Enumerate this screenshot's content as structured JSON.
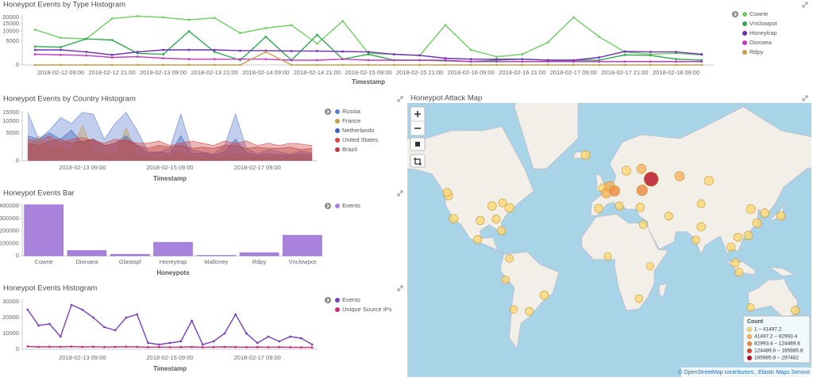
{
  "chart_data": [
    {
      "type": "line",
      "title": "Honeypot Events by Type Histogram",
      "xlabel": "Timestamp",
      "yscale": "sqrt",
      "grid": false,
      "categories": [
        null,
        "2018-02-12 09:00",
        null,
        "2018-02-12 21:00",
        null,
        "2018-02-13 09:00",
        null,
        "2018-02-13 21:00",
        null,
        "2018-02-14 09:00",
        null,
        "2018-02-14 21:00",
        null,
        "2018-02-15 09:00",
        null,
        "2018-02-15 21:00",
        null,
        "2018-02-16 09:00",
        null,
        "2018-02-16 21:00",
        null,
        "2018-02-17 09:00",
        null,
        "2018-02-17 21:00",
        null,
        "2018-02-18 09:00",
        null
      ],
      "ylim": [
        0,
        22000
      ],
      "yticks": [
        0,
        5000,
        10000,
        15000,
        20000
      ],
      "series": [
        {
          "name": "Cowrie",
          "color": "#6fcd63",
          "values": [
            11000,
            6500,
            6000,
            19000,
            21000,
            20000,
            18000,
            19500,
            9000,
            12000,
            14000,
            4000,
            17000,
            1200,
            1000,
            800,
            14000,
            2000,
            600,
            1000,
            4500,
            20000,
            7000,
            1500,
            1000,
            1200,
            900
          ]
        },
        {
          "name": "Vnclowpot",
          "color": "#2fa84f",
          "values": [
            3000,
            2800,
            6000,
            5500,
            1200,
            1000,
            10000,
            1500,
            200,
            7000,
            200,
            8000,
            300,
            1000,
            200,
            200,
            150,
            100,
            200,
            300,
            200,
            200,
            200,
            900,
            800,
            300,
            200
          ]
        },
        {
          "name": "Honeytrap",
          "color": "#6f2eb3",
          "values": [
            2000,
            2000,
            1500,
            900,
            1500,
            2000,
            2000,
            2000,
            1800,
            1800,
            1700,
            1700,
            1600,
            1500,
            1000,
            800,
            400,
            300,
            300,
            300,
            200,
            200,
            500,
            1600,
            1500,
            1500,
            1000
          ]
        },
        {
          "name": "Dionaea",
          "color": "#c13bc2",
          "values": [
            1000,
            900,
            800,
            500,
            600,
            400,
            300,
            300,
            300,
            300,
            200,
            200,
            300,
            200,
            200,
            200,
            200,
            100,
            100,
            100,
            100,
            100,
            100,
            100,
            100,
            100,
            100
          ]
        },
        {
          "name": "Rdpy",
          "color": "#c8a04c",
          "values": [
            0,
            0,
            0,
            0,
            0,
            0,
            0,
            0,
            0,
            1500,
            0,
            0,
            0,
            0,
            0,
            0,
            0,
            0,
            0,
            0,
            0,
            0,
            0,
            0,
            0,
            0,
            0
          ]
        }
      ]
    },
    {
      "type": "area",
      "title": "Honeypot Events by Country Histogram",
      "xlabel": "Timestamp",
      "yscale": "sqrt",
      "grid": false,
      "categories": [
        null,
        null,
        null,
        null,
        null,
        "2018-02-13 09:00",
        null,
        null,
        null,
        null,
        null,
        null,
        null,
        "2018-02-15 09:00",
        null,
        null,
        null,
        null,
        null,
        null,
        null,
        "2018-02-17 09:00",
        null,
        null,
        null,
        null,
        null
      ],
      "ylim": [
        0,
        16000
      ],
      "yticks": [
        0,
        5000,
        10000,
        15000
      ],
      "series": [
        {
          "name": "Russia",
          "color": "#5b7fd0",
          "values": [
            15000,
            3000,
            6000,
            12000,
            9000,
            15000,
            14000,
            3000,
            9000,
            15000,
            6000,
            500,
            500,
            1000,
            14000,
            800,
            500,
            300,
            1500,
            14000,
            1000,
            300,
            800,
            500,
            300,
            600,
            400
          ]
        },
        {
          "name": "France",
          "color": "#c39d4e",
          "values": [
            1000,
            4000,
            800,
            1500,
            500,
            8000,
            600,
            300,
            200,
            7000,
            200,
            100,
            100,
            100,
            400,
            100,
            100,
            100,
            100,
            300,
            100,
            100,
            100,
            100,
            100,
            100,
            100
          ]
        },
        {
          "name": "Netherlands",
          "color": "#3d62b8",
          "values": [
            4000,
            3000,
            5000,
            3000,
            6000,
            2000,
            3000,
            1500,
            2000,
            4000,
            1500,
            300,
            500,
            300,
            4000,
            300,
            400,
            200,
            500,
            3000,
            400,
            200,
            300,
            200,
            200,
            300,
            200
          ]
        },
        {
          "name": "United States",
          "color": "#d34141",
          "values": [
            3000,
            2500,
            4000,
            2000,
            3000,
            3500,
            2500,
            2000,
            3000,
            2500,
            2000,
            2000,
            2500,
            1500,
            2000,
            2500,
            2000,
            1500,
            2500,
            2000,
            2500,
            1500,
            2000,
            1500,
            2000,
            1800,
            1500
          ]
        },
        {
          "name": "Brazil",
          "color": "#b83b3b",
          "values": [
            2000,
            1500,
            2500,
            3000,
            2000,
            2500,
            3000,
            1500,
            2000,
            3000,
            1500,
            1000,
            1500,
            1200,
            1500,
            1000,
            1200,
            1000,
            1500,
            1500,
            1000,
            1200,
            1000,
            1000,
            1200,
            800,
            1000
          ]
        }
      ]
    },
    {
      "type": "bar",
      "title": "Honeypot Events Bar",
      "xlabel": "Honeypots",
      "grid": false,
      "categories": [
        "Cowrie",
        "Dionaea",
        "Glastopf",
        "Honeytrap",
        "Malloney",
        "Rdpy",
        "Vnclowpot"
      ],
      "ylim": [
        0,
        420000
      ],
      "yticks": [
        0,
        100000,
        200000,
        300000,
        400000
      ],
      "series": [
        {
          "name": "Events",
          "color": "#a982dc",
          "values": [
            410000,
            42000,
            12000,
            108000,
            3000,
            25000,
            165000
          ]
        }
      ]
    },
    {
      "type": "line",
      "title": "Honeypot Events Histogram",
      "xlabel": "Timestamp",
      "grid": false,
      "categories": [
        null,
        null,
        null,
        null,
        null,
        "2018-02-13 09:00",
        null,
        null,
        null,
        null,
        null,
        null,
        null,
        "2018-02-15 09:00",
        null,
        null,
        null,
        null,
        null,
        null,
        null,
        "2018-02-17 09:00",
        null,
        null,
        null,
        null,
        null
      ],
      "ylim": [
        0,
        32000
      ],
      "yticks": [
        0,
        10000,
        20000,
        30000
      ],
      "series": [
        {
          "name": "Events",
          "color": "#7b3fb8",
          "values": [
            25000,
            15000,
            16000,
            8000,
            28000,
            25000,
            20000,
            14000,
            12000,
            20000,
            22000,
            4000,
            3000,
            4000,
            5000,
            18000,
            3000,
            5000,
            10000,
            22000,
            10000,
            4000,
            8000,
            5000,
            8000,
            7000,
            3000
          ]
        },
        {
          "name": "Unique Source IPs",
          "color": "#c2307a",
          "values": [
            1800,
            1500,
            1600,
            1500,
            1700,
            1500,
            1600,
            1400,
            1500,
            1600,
            1500,
            1300,
            1400,
            1300,
            1400,
            1500,
            1300,
            1400,
            1500,
            1400,
            1300,
            1400,
            1300,
            1400,
            1300,
            1200,
            1200
          ]
        }
      ]
    }
  ],
  "map": {
    "title": "Honeypot Attack Map",
    "attribution": "© OpenStreetMap contributors , Elastic Maps Service",
    "legend": {
      "title": "Count",
      "bins": [
        {
          "label": "1 – 41497.2",
          "range": [
            1,
            41497.2
          ],
          "color": "#fbd874"
        },
        {
          "label": "41497.2 – 82993.4",
          "range": [
            41497.2,
            82993.4
          ],
          "color": "#f6b35c"
        },
        {
          "label": "82993.4 – 124489.6",
          "range": [
            82993.4,
            124489.6
          ],
          "color": "#ee8a3f"
        },
        {
          "label": "124489.6 – 165985.8",
          "range": [
            124489.6,
            165985.8
          ],
          "color": "#d8432c"
        },
        {
          "label": "165985.8 – 297482",
          "range": [
            165985.8,
            297482
          ],
          "color": "#b80a1e"
        }
      ]
    },
    "points": [
      {
        "lon": -122,
        "lat": 47.6,
        "value": 20000
      },
      {
        "lon": -123,
        "lat": 49.3,
        "value": 15000
      },
      {
        "lon": -118,
        "lat": 34,
        "value": 25000
      },
      {
        "lon": -97,
        "lat": 32.8,
        "value": 20000
      },
      {
        "lon": -87.6,
        "lat": 41.9,
        "value": 25000
      },
      {
        "lon": -79.4,
        "lat": 43.7,
        "value": 15000
      },
      {
        "lon": -74,
        "lat": 40.7,
        "value": 30000
      },
      {
        "lon": -84.4,
        "lat": 33.7,
        "value": 15000
      },
      {
        "lon": -80.2,
        "lat": 25.8,
        "value": 15000
      },
      {
        "lon": -99,
        "lat": 19.4,
        "value": 15000
      },
      {
        "lon": -74,
        "lat": 4.7,
        "value": 10000
      },
      {
        "lon": -77,
        "lat": -12,
        "value": 8000
      },
      {
        "lon": -46.6,
        "lat": -23.5,
        "value": 25000
      },
      {
        "lon": -58.4,
        "lat": -34.6,
        "value": 15000
      },
      {
        "lon": -70.6,
        "lat": -33.4,
        "value": 8000
      },
      {
        "lon": -14,
        "lat": 65,
        "value": 30000
      },
      {
        "lon": -3.7,
        "lat": 40.4,
        "value": 20000
      },
      {
        "lon": -0.1,
        "lat": 51.5,
        "value": 30000
      },
      {
        "lon": 2.3,
        "lat": 48.9,
        "value": 50000
      },
      {
        "lon": 4.9,
        "lat": 52.4,
        "value": 60000
      },
      {
        "lon": 8.7,
        "lat": 50.1,
        "value": 85000
      },
      {
        "lon": 12.5,
        "lat": 41.9,
        "value": 15000
      },
      {
        "lon": 18,
        "lat": 59.3,
        "value": 35000
      },
      {
        "lon": 29,
        "lat": 41,
        "value": 25000
      },
      {
        "lon": 30,
        "lat": 60,
        "value": 45000
      },
      {
        "lon": 30.5,
        "lat": 50.4,
        "value": 90000
      },
      {
        "lon": 60,
        "lat": 57,
        "value": 50000
      },
      {
        "lon": 83,
        "lat": 55,
        "value": 40000
      },
      {
        "lon": 76.9,
        "lat": 43.2,
        "value": 15000
      },
      {
        "lon": 51.4,
        "lat": 35.7,
        "value": 15000
      },
      {
        "lon": 31.2,
        "lat": 30,
        "value": 10000
      },
      {
        "lon": 3.4,
        "lat": 6.5,
        "value": 8000
      },
      {
        "lon": 36.8,
        "lat": -1.3,
        "value": 6000
      },
      {
        "lon": 28,
        "lat": -26,
        "value": 10000
      },
      {
        "lon": 77,
        "lat": 28.6,
        "value": 20000
      },
      {
        "lon": 72.8,
        "lat": 19,
        "value": 15000
      },
      {
        "lon": 100.5,
        "lat": 13.7,
        "value": 15000
      },
      {
        "lon": 105.8,
        "lat": 21,
        "value": 15000
      },
      {
        "lon": 103.8,
        "lat": 1.3,
        "value": 20000
      },
      {
        "lon": 106.8,
        "lat": -6.2,
        "value": 15000
      },
      {
        "lon": 114,
        "lat": 22.3,
        "value": 25000
      },
      {
        "lon": 121,
        "lat": 31,
        "value": 30000
      },
      {
        "lon": 116,
        "lat": 40,
        "value": 35000
      },
      {
        "lon": 127,
        "lat": 37.5,
        "value": 25000
      },
      {
        "lon": 139.7,
        "lat": 35.7,
        "value": 20000
      },
      {
        "lon": 115.9,
        "lat": -32,
        "value": 8000
      },
      {
        "lon": 151,
        "lat": -33.9,
        "value": 15000
      },
      {
        "lon": 37.6,
        "lat": 55.7,
        "value": 297482
      }
    ]
  }
}
